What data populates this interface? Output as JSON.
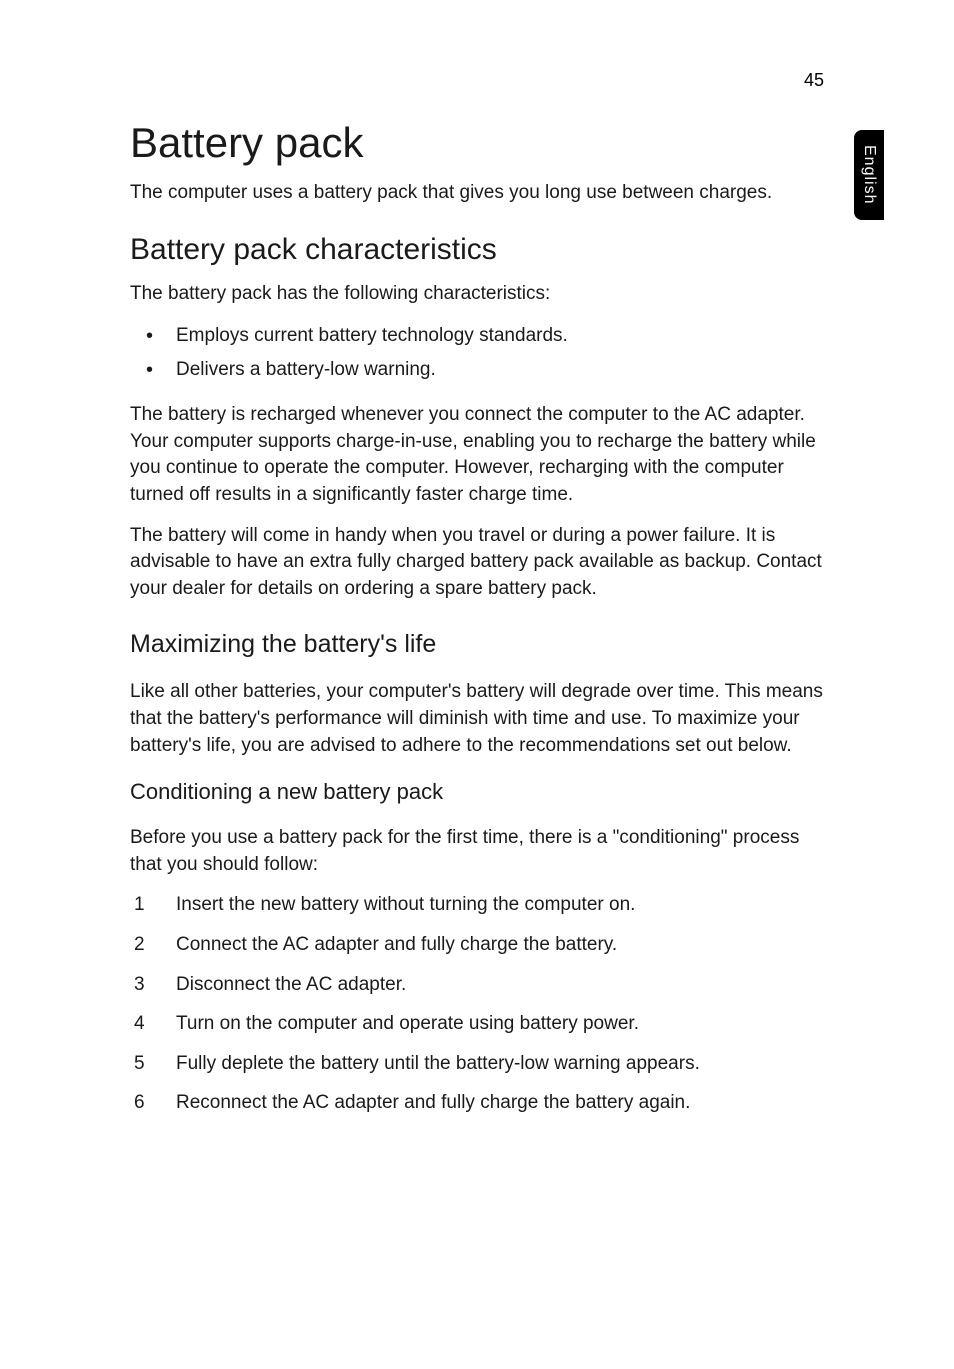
{
  "page_number": "45",
  "side_tab": "English",
  "title": "Battery pack",
  "intro": "The computer uses a battery pack that gives you long use between charges.",
  "section1": {
    "heading": "Battery pack characteristics",
    "lead": "The battery pack has the following characteristics:",
    "bullets": [
      "Employs current battery technology standards.",
      "Delivers a battery-low warning."
    ],
    "para1": "The battery is recharged whenever you connect the computer to the AC adapter. Your computer supports charge-in-use, enabling you to recharge the battery while you continue to operate the computer. However, recharging with the computer turned off results in a significantly faster charge time.",
    "para2": "The battery will come in handy when you travel or during a power failure. It is advisable to have an extra fully charged battery pack available as backup. Contact your dealer for details on ordering a spare battery pack."
  },
  "section2": {
    "heading": "Maximizing the battery's life",
    "para": "Like all other batteries, your computer's battery will degrade over time. This means that the battery's performance will diminish with time and use. To maximize your battery's life, you are advised to adhere to the recommendations set out below."
  },
  "section3": {
    "heading": "Conditioning a new battery pack",
    "lead": "Before you use a battery pack for the first time, there is a \"conditioning\" process that you should follow:",
    "steps": [
      "Insert the new battery without turning the computer on.",
      "Connect the AC adapter and fully charge the battery.",
      "Disconnect the AC adapter.",
      "Turn on the computer and operate using battery power.",
      "Fully deplete the battery until the battery-low warning appears.",
      "Reconnect the AC adapter and fully charge the battery again."
    ]
  }
}
